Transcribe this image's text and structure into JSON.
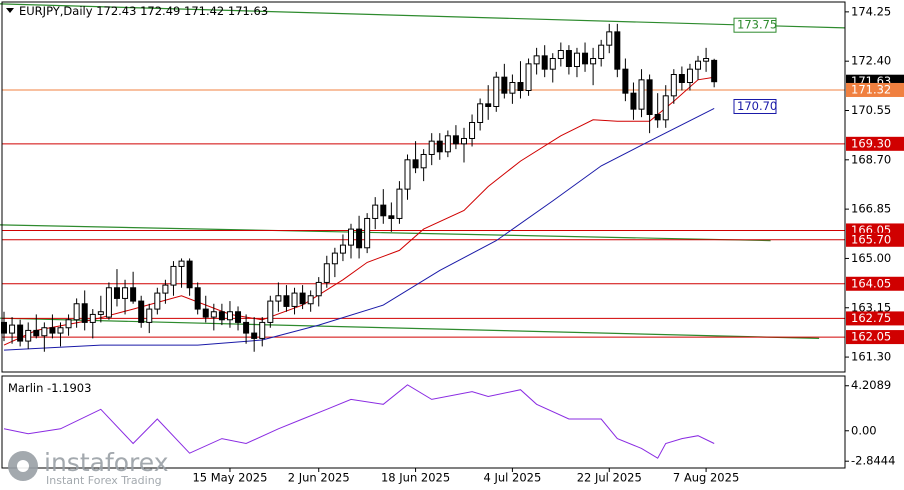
{
  "chart_data": {
    "type": "candlestick",
    "header": {
      "symbol": "EURJPY,Daily"
    },
    "categories": [
      null,
      null,
      null,
      null,
      null,
      null,
      null,
      null,
      null,
      null,
      null,
      null,
      null,
      null,
      null,
      null,
      null,
      null,
      null,
      null,
      null,
      null,
      null,
      null,
      null,
      null,
      null,
      null,
      "15 May 2025",
      null,
      null,
      null,
      null,
      null,
      null,
      null,
      null,
      null,
      null,
      "2 Jun 2025",
      null,
      null,
      null,
      null,
      null,
      null,
      null,
      null,
      null,
      null,
      null,
      "18 Jun 2025",
      null,
      null,
      null,
      null,
      null,
      null,
      null,
      null,
      null,
      null,
      null,
      "4 Jul 2025",
      null,
      null,
      null,
      null,
      null,
      null,
      null,
      null,
      null,
      null,
      null,
      "22 Jul 2025",
      null,
      null,
      null,
      null,
      null,
      null,
      null,
      null,
      null,
      null,
      null,
      "7 Aug 2025",
      null
    ],
    "candles": [
      [
        162.6,
        163.0,
        161.9,
        162.2
      ],
      [
        162.2,
        162.8,
        161.8,
        162.5
      ],
      [
        162.5,
        162.7,
        161.7,
        161.9
      ],
      [
        161.9,
        162.6,
        161.6,
        162.3
      ],
      [
        162.3,
        162.9,
        162.0,
        162.1
      ],
      [
        162.1,
        162.6,
        161.5,
        162.4
      ],
      [
        162.4,
        162.9,
        162.0,
        162.2
      ],
      [
        162.2,
        162.6,
        161.7,
        162.4
      ],
      [
        162.4,
        162.9,
        162.1,
        162.7
      ],
      [
        162.7,
        163.5,
        162.4,
        163.3
      ],
      [
        163.3,
        163.8,
        162.3,
        162.6
      ],
      [
        162.6,
        163.1,
        162.0,
        162.9
      ],
      [
        162.9,
        163.6,
        162.6,
        163.0
      ],
      [
        162.8,
        164.1,
        162.7,
        163.9
      ],
      [
        163.9,
        164.6,
        163.2,
        163.5
      ],
      [
        163.5,
        164.2,
        162.9,
        163.9
      ],
      [
        163.9,
        164.5,
        163.3,
        163.4
      ],
      [
        163.4,
        163.6,
        162.4,
        162.6
      ],
      [
        162.6,
        163.3,
        162.2,
        163.1
      ],
      [
        163.1,
        163.9,
        162.9,
        163.7
      ],
      [
        163.7,
        164.2,
        163.3,
        164.0
      ],
      [
        164.0,
        164.9,
        163.6,
        164.7
      ],
      [
        164.7,
        165.0,
        163.9,
        164.9
      ],
      [
        164.9,
        165.0,
        163.6,
        163.9
      ],
      [
        163.9,
        164.1,
        162.9,
        163.1
      ],
      [
        163.1,
        163.6,
        162.6,
        162.8
      ],
      [
        162.8,
        163.3,
        162.3,
        163.0
      ],
      [
        163.0,
        163.3,
        162.5,
        162.7
      ],
      [
        162.7,
        163.4,
        162.4,
        163.0
      ],
      [
        163.0,
        163.2,
        162.3,
        162.6
      ],
      [
        162.6,
        162.9,
        161.8,
        162.2
      ],
      [
        162.2,
        162.8,
        161.5,
        162.0
      ],
      [
        162.0,
        162.8,
        161.7,
        162.6
      ],
      [
        162.6,
        163.6,
        162.4,
        163.4
      ],
      [
        163.4,
        164.1,
        163.0,
        163.6
      ],
      [
        163.6,
        164.0,
        163.0,
        163.2
      ],
      [
        163.2,
        163.9,
        162.9,
        163.7
      ],
      [
        163.7,
        164.0,
        163.1,
        163.3
      ],
      [
        163.3,
        163.8,
        163.0,
        163.6
      ],
      [
        163.6,
        164.3,
        163.2,
        164.1
      ],
      [
        164.1,
        165.1,
        163.9,
        164.8
      ],
      [
        164.8,
        165.4,
        164.3,
        165.2
      ],
      [
        165.2,
        165.9,
        164.9,
        165.5
      ],
      [
        165.5,
        166.3,
        165.0,
        166.1
      ],
      [
        166.1,
        166.6,
        165.0,
        165.4
      ],
      [
        165.4,
        166.7,
        165.2,
        166.5
      ],
      [
        166.5,
        167.3,
        166.1,
        167.0
      ],
      [
        167.0,
        167.6,
        166.3,
        166.6
      ],
      [
        166.6,
        167.1,
        166.0,
        166.5
      ],
      [
        166.5,
        167.9,
        166.3,
        167.6
      ],
      [
        167.6,
        168.9,
        167.2,
        168.7
      ],
      [
        168.7,
        169.4,
        168.2,
        168.4
      ],
      [
        168.4,
        169.1,
        167.9,
        168.9
      ],
      [
        168.9,
        169.7,
        168.5,
        169.4
      ],
      [
        169.4,
        169.7,
        168.7,
        169.0
      ],
      [
        169.0,
        169.8,
        168.8,
        169.6
      ],
      [
        169.6,
        170.0,
        169.1,
        169.3
      ],
      [
        169.3,
        169.9,
        168.6,
        169.5
      ],
      [
        169.5,
        170.4,
        169.2,
        170.1
      ],
      [
        170.1,
        171.0,
        169.8,
        170.8
      ],
      [
        170.8,
        171.5,
        170.2,
        170.7
      ],
      [
        170.7,
        172.0,
        170.5,
        171.8
      ],
      [
        171.8,
        172.3,
        171.0,
        171.2
      ],
      [
        171.2,
        171.9,
        170.8,
        171.6
      ],
      [
        171.6,
        172.4,
        171.0,
        171.3
      ],
      [
        171.3,
        172.5,
        171.1,
        172.3
      ],
      [
        172.3,
        172.9,
        171.9,
        172.6
      ],
      [
        172.6,
        173.0,
        171.8,
        172.1
      ],
      [
        172.1,
        172.7,
        171.6,
        172.5
      ],
      [
        172.5,
        173.1,
        172.2,
        172.8
      ],
      [
        172.8,
        173.0,
        171.9,
        172.2
      ],
      [
        172.2,
        172.9,
        171.8,
        172.7
      ],
      [
        172.7,
        173.1,
        172.0,
        172.3
      ],
      [
        172.3,
        172.9,
        171.5,
        172.5
      ],
      [
        172.5,
        173.2,
        172.2,
        173.0
      ],
      [
        173.0,
        173.8,
        172.7,
        173.5
      ],
      [
        173.5,
        173.8,
        171.8,
        172.1
      ],
      [
        172.1,
        172.5,
        170.9,
        171.2
      ],
      [
        171.2,
        171.6,
        170.2,
        170.6
      ],
      [
        170.6,
        172.1,
        170.3,
        171.7
      ],
      [
        171.7,
        171.9,
        169.7,
        170.4
      ],
      [
        170.4,
        171.2,
        169.9,
        170.2
      ],
      [
        170.2,
        171.5,
        169.9,
        171.1
      ],
      [
        171.1,
        172.1,
        170.8,
        171.9
      ],
      [
        171.9,
        172.2,
        171.3,
        171.6
      ],
      [
        171.6,
        172.3,
        171.3,
        172.1
      ],
      [
        172.1,
        172.6,
        171.7,
        172.4
      ],
      [
        172.4,
        172.9,
        172.0,
        172.5
      ],
      [
        172.43,
        172.49,
        171.42,
        171.63
      ]
    ],
    "ylim": [
      160.74,
      174.62
    ],
    "yticks": [
      174.25,
      {
        "value": 172.4,
        "label": "172.40"
      },
      170.55,
      {
        "value": 168.7,
        "label": "168.70"
      },
      166.85,
      {
        "value": 165,
        "label": "165.00"
      },
      163.15,
      {
        "value": 161.3,
        "label": "161.30"
      }
    ],
    "series": [
      {
        "color": "#d00000",
        "x": [
          0,
          4,
          11,
          16,
          22,
          28,
          32,
          37,
          42,
          45,
          49,
          52,
          57,
          60,
          64,
          69,
          73,
          76,
          80,
          83,
          86,
          88
        ],
        "values": [
          161.75,
          162.3,
          162.7,
          163.1,
          163.6,
          162.9,
          162.7,
          163.25,
          164.2,
          164.85,
          165.3,
          166.1,
          166.8,
          167.7,
          168.65,
          169.6,
          170.2,
          170.15,
          170.15,
          170.9,
          171.7,
          171.8
        ]
      },
      {
        "color": "#1a1aa8",
        "x": [
          0,
          12,
          24,
          32,
          39,
          47,
          54,
          61,
          68,
          74,
          80,
          88
        ],
        "values": [
          161.56,
          161.75,
          161.75,
          161.94,
          162.5,
          163.25,
          164.55,
          165.67,
          167.16,
          168.47,
          169.4,
          170.63
        ]
      }
    ],
    "trendlines": [
      {
        "color": "#2e8b2e",
        "x": [
          -0.5,
          104.2
        ],
        "values": [
          174.55,
          173.65
        ]
      },
      {
        "color": "#2e8b2e",
        "x": [
          -0.5,
          95
        ],
        "values": [
          166.26,
          165.67
        ]
      },
      {
        "color": "#2e8b2e",
        "x": [
          -0.5,
          101
        ],
        "values": [
          162.76,
          162.0
        ]
      }
    ],
    "levels": [
      {
        "value": 173.75,
        "label": "173.75",
        "color": "#2e8b2e",
        "box": "inline",
        "line": false
      },
      {
        "value": 171.63,
        "label": "171.63",
        "color": "#000000",
        "box": "axis",
        "line": false
      },
      {
        "value": 171.32,
        "label": "171.32",
        "color": "#f08040",
        "box": "axis",
        "line": true
      },
      {
        "value": 170.7,
        "label": "170.70",
        "color": "#1a1aa8",
        "box": "inline",
        "line": false
      },
      {
        "value": 169.3,
        "label": "169.30",
        "color": "#d00000",
        "box": "axis",
        "line": true
      },
      {
        "value": 166.05,
        "label": "166.05",
        "color": "#d00000",
        "box": "axis",
        "line": true
      },
      {
        "value": 165.7,
        "label": "165.70",
        "color": "#d00000",
        "box": "axis",
        "line": true
      },
      {
        "value": 164.05,
        "label": "164.05",
        "color": "#d00000",
        "box": "axis",
        "line": true
      },
      {
        "value": 162.75,
        "label": "162.75",
        "color": "#d00000",
        "box": "axis",
        "line": true
      },
      {
        "value": 162.05,
        "label": "162.05",
        "color": "#d00000",
        "box": "axis",
        "line": true
      }
    ],
    "oscillator": {
      "name": "Marlin",
      "color": "#8a2be2",
      "x": [
        0,
        3,
        7,
        12,
        16,
        19,
        23,
        27,
        30,
        34,
        37,
        40,
        43,
        47,
        50,
        53,
        58,
        60,
        64,
        66,
        70,
        74,
        76,
        79,
        81,
        82,
        84,
        86,
        88
      ],
      "values": [
        0.18,
        -0.27,
        0.18,
        2.01,
        -1.19,
        1.1,
        -2.1,
        -0.73,
        -1.19,
        0.18,
        1.1,
        2.01,
        2.93,
        2.47,
        4.3,
        2.93,
        3.66,
        3.2,
        3.84,
        2.47,
        1.1,
        1.1,
        -0.73,
        -1.65,
        -2.56,
        -1.19,
        -0.73,
        -0.46,
        -1.1903
      ],
      "ylim": [
        -3.48,
        5.12
      ],
      "yticks": [
        4.2089,
        {
          "value": 0,
          "label": "0.00"
        },
        -2.8444
      ]
    },
    "watermark": {
      "brand": "instaforex",
      "tagline": "Instant Forex Trading"
    }
  }
}
